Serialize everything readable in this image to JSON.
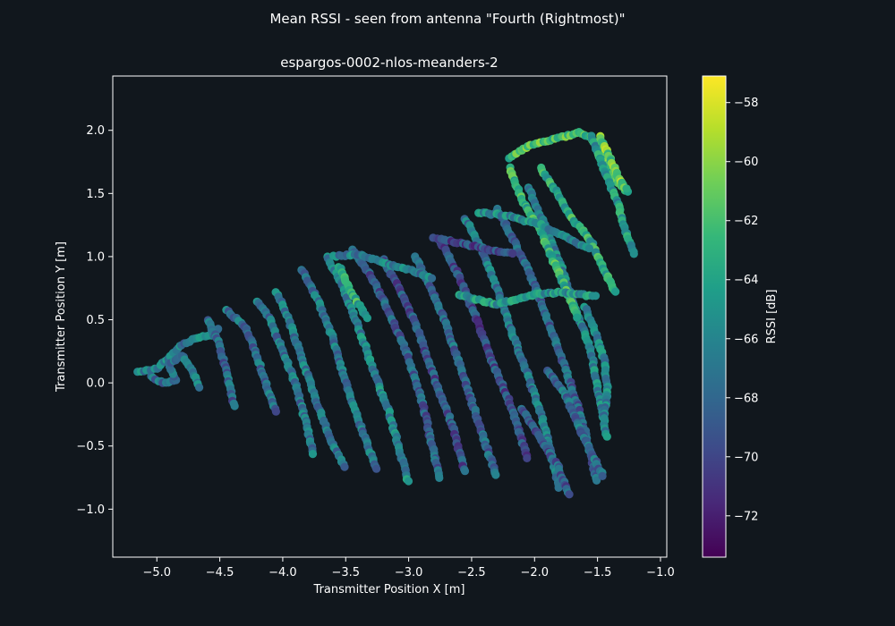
{
  "figure": {
    "suptitle": "Mean RSSI - seen from antenna \"Fourth (Rightmost)\"",
    "background": "#11171d"
  },
  "chart_data": {
    "type": "scatter",
    "title": "espargos-0002-nlos-meanders-2",
    "xlabel": "Transmitter Position X [m]",
    "ylabel": "Transmitter Position Y [m]",
    "xlim": [
      -5.35,
      -0.95
    ],
    "ylim": [
      -1.38,
      2.43
    ],
    "xticks": [
      -5.0,
      -4.5,
      -4.0,
      -3.5,
      -3.0,
      -2.5,
      -2.0,
      -1.5,
      -1.0
    ],
    "xtick_labels": [
      "−5.0",
      "−4.5",
      "−4.0",
      "−3.5",
      "−3.0",
      "−2.5",
      "−2.0",
      "−1.5",
      "−1.0"
    ],
    "yticks": [
      -1.0,
      -0.5,
      0.0,
      0.5,
      1.0,
      1.5,
      2.0
    ],
    "ytick_labels": [
      "−1.0",
      "−0.5",
      "0.0",
      "0.5",
      "1.0",
      "1.5",
      "2.0"
    ],
    "grid": false,
    "colormap": "viridis",
    "colorbar": {
      "label": "RSSI [dB]",
      "range": [
        -73.4,
        -57.1
      ],
      "ticks": [
        -58,
        -60,
        -62,
        -64,
        -66,
        -68,
        -70,
        -72
      ],
      "tick_labels": [
        "−58",
        "−60",
        "−62",
        "−64",
        "−66",
        "−68",
        "−70",
        "−72"
      ]
    },
    "colors": [
      "#440154",
      "#482878",
      "#3e4a89",
      "#31688e",
      "#26828e",
      "#1f9e89",
      "#35b779",
      "#6ece58",
      "#b5de2b",
      "#fde725"
    ],
    "trajectories": [
      {
        "rssi_mean": -66.5,
        "points": [
          [
            -5.15,
            0.09
          ],
          [
            -5.0,
            0.11
          ],
          [
            -4.8,
            0.3
          ],
          [
            -4.7,
            0.35
          ],
          [
            -4.55,
            0.38
          ],
          [
            -4.5,
            0.45
          ]
        ]
      },
      {
        "rssi_mean": -67.0,
        "points": [
          [
            -5.05,
            0.05
          ],
          [
            -4.95,
            0.0
          ],
          [
            -4.85,
            0.02
          ],
          [
            -4.9,
            0.15
          ],
          [
            -4.8,
            0.22
          ],
          [
            -4.72,
            0.1
          ],
          [
            -4.65,
            -0.05
          ]
        ]
      },
      {
        "rssi_mean": -68.0,
        "points": [
          [
            -4.6,
            0.5
          ],
          [
            -4.52,
            0.35
          ],
          [
            -4.45,
            0.1
          ],
          [
            -4.38,
            -0.2
          ]
        ]
      },
      {
        "rssi_mean": -67.5,
        "points": [
          [
            -4.45,
            0.58
          ],
          [
            -4.3,
            0.45
          ],
          [
            -4.2,
            0.2
          ],
          [
            -4.12,
            -0.05
          ],
          [
            -4.05,
            -0.25
          ]
        ]
      },
      {
        "rssi_mean": -67.0,
        "points": [
          [
            -4.2,
            0.65
          ],
          [
            -4.1,
            0.5
          ],
          [
            -4.0,
            0.25
          ],
          [
            -3.9,
            0.0
          ],
          [
            -3.82,
            -0.3
          ],
          [
            -3.75,
            -0.58
          ]
        ]
      },
      {
        "rssi_mean": -66.5,
        "points": [
          [
            -4.05,
            0.72
          ],
          [
            -3.95,
            0.5
          ],
          [
            -3.85,
            0.2
          ],
          [
            -3.75,
            -0.1
          ],
          [
            -3.62,
            -0.45
          ],
          [
            -3.5,
            -0.68
          ]
        ]
      },
      {
        "rssi_mean": -67.0,
        "points": [
          [
            -3.85,
            0.9
          ],
          [
            -3.72,
            0.65
          ],
          [
            -3.6,
            0.35
          ],
          [
            -3.5,
            0.0
          ],
          [
            -3.38,
            -0.35
          ],
          [
            -3.25,
            -0.7
          ]
        ]
      },
      {
        "rssi_mean": -66.0,
        "points": [
          [
            -3.65,
            1.0
          ],
          [
            -3.52,
            0.75
          ],
          [
            -3.4,
            0.45
          ],
          [
            -3.28,
            0.1
          ],
          [
            -3.15,
            -0.25
          ],
          [
            -3.0,
            -0.8
          ]
        ]
      },
      {
        "rssi_mean": -63.5,
        "points": [
          [
            -3.55,
            0.92
          ],
          [
            -3.45,
            0.7
          ],
          [
            -3.32,
            0.5
          ]
        ]
      },
      {
        "rssi_mean": -68.5,
        "points": [
          [
            -3.45,
            1.05
          ],
          [
            -3.3,
            0.85
          ],
          [
            -3.15,
            0.55
          ],
          [
            -3.0,
            0.2
          ],
          [
            -2.88,
            -0.2
          ],
          [
            -2.75,
            -0.78
          ]
        ]
      },
      {
        "rssi_mean": -69.0,
        "points": [
          [
            -3.2,
            0.98
          ],
          [
            -3.05,
            0.7
          ],
          [
            -2.92,
            0.4
          ],
          [
            -2.8,
            0.05
          ],
          [
            -2.65,
            -0.35
          ],
          [
            -2.55,
            -0.72
          ]
        ]
      },
      {
        "rssi_mean": -68.0,
        "points": [
          [
            -2.95,
            1.0
          ],
          [
            -2.82,
            0.75
          ],
          [
            -2.7,
            0.45
          ],
          [
            -2.58,
            0.1
          ],
          [
            -2.45,
            -0.3
          ],
          [
            -2.3,
            -0.75
          ]
        ]
      },
      {
        "rssi_mean": -69.5,
        "points": [
          [
            -2.75,
            1.12
          ],
          [
            -2.6,
            0.85
          ],
          [
            -2.48,
            0.55
          ],
          [
            -2.35,
            0.2
          ],
          [
            -2.2,
            -0.15
          ],
          [
            -2.05,
            -0.62
          ]
        ]
      },
      {
        "rssi_mean": -67.0,
        "points": [
          [
            -2.55,
            1.3
          ],
          [
            -2.42,
            1.05
          ],
          [
            -2.3,
            0.75
          ],
          [
            -2.18,
            0.4
          ],
          [
            -2.05,
            0.05
          ],
          [
            -1.92,
            -0.35
          ],
          [
            -1.8,
            -0.85
          ]
        ]
      },
      {
        "rssi_mean": -68.0,
        "points": [
          [
            -2.3,
            1.38
          ],
          [
            -2.15,
            1.1
          ],
          [
            -2.0,
            0.78
          ],
          [
            -1.88,
            0.45
          ],
          [
            -1.75,
            0.1
          ],
          [
            -1.62,
            -0.3
          ],
          [
            -1.5,
            -0.8
          ]
        ]
      },
      {
        "rssi_mean": -66.0,
        "points": [
          [
            -2.05,
            1.55
          ],
          [
            -1.92,
            1.25
          ],
          [
            -1.8,
            0.95
          ],
          [
            -1.68,
            0.6
          ],
          [
            -1.55,
            0.25
          ],
          [
            -1.48,
            -0.15
          ],
          [
            -1.42,
            -0.45
          ]
        ]
      },
      {
        "rssi_mean": -63.0,
        "points": [
          [
            -2.2,
            1.7
          ],
          [
            -2.1,
            1.45
          ],
          [
            -1.95,
            1.2
          ],
          [
            -1.8,
            0.85
          ],
          [
            -1.65,
            0.5
          ]
        ]
      },
      {
        "rssi_mean": -62.0,
        "points": [
          [
            -2.2,
            1.78
          ],
          [
            -2.05,
            1.88
          ],
          [
            -1.85,
            1.93
          ],
          [
            -1.65,
            1.98
          ],
          [
            -1.55,
            1.95
          ],
          [
            -1.45,
            1.78
          ],
          [
            -1.35,
            1.6
          ],
          [
            -1.25,
            1.5
          ]
        ]
      },
      {
        "rssi_mean": -63.5,
        "points": [
          [
            -1.95,
            1.7
          ],
          [
            -1.82,
            1.5
          ],
          [
            -1.7,
            1.3
          ],
          [
            -1.55,
            1.12
          ],
          [
            -1.45,
            0.9
          ],
          [
            -1.35,
            0.7
          ]
        ]
      },
      {
        "rssi_mean": -64.5,
        "points": [
          [
            -1.55,
            1.95
          ],
          [
            -1.45,
            1.7
          ],
          [
            -1.35,
            1.45
          ],
          [
            -1.28,
            1.22
          ],
          [
            -1.2,
            1.0
          ]
        ]
      },
      {
        "rssi_mean": -61.0,
        "points": [
          [
            -1.48,
            1.95
          ],
          [
            -1.4,
            1.78
          ],
          [
            -1.32,
            1.6
          ],
          [
            -1.26,
            1.52
          ]
        ]
      },
      {
        "rssi_mean": -65.5,
        "points": [
          [
            -2.45,
            1.35
          ],
          [
            -2.2,
            1.32
          ],
          [
            -1.95,
            1.25
          ],
          [
            -1.75,
            1.15
          ],
          [
            -1.55,
            1.05
          ]
        ]
      },
      {
        "rssi_mean": -69.5,
        "points": [
          [
            -2.8,
            1.15
          ],
          [
            -2.55,
            1.1
          ],
          [
            -2.35,
            1.05
          ],
          [
            -2.15,
            1.02
          ]
        ]
      },
      {
        "rssi_mean": -66.5,
        "points": [
          [
            -3.6,
            1.0
          ],
          [
            -3.4,
            1.02
          ],
          [
            -3.2,
            0.95
          ],
          [
            -3.0,
            0.9
          ],
          [
            -2.8,
            0.82
          ]
        ]
      },
      {
        "rssi_mean": -65.0,
        "points": [
          [
            -2.6,
            0.7
          ],
          [
            -2.3,
            0.62
          ],
          [
            -2.0,
            0.7
          ],
          [
            -1.75,
            0.72
          ],
          [
            -1.5,
            0.68
          ]
        ]
      },
      {
        "rssi_mean": -67.5,
        "points": [
          [
            -1.9,
            0.1
          ],
          [
            -1.75,
            -0.1
          ],
          [
            -1.65,
            -0.35
          ],
          [
            -1.55,
            -0.55
          ],
          [
            -1.45,
            -0.75
          ]
        ]
      },
      {
        "rssi_mean": -66.0,
        "points": [
          [
            -1.6,
            0.6
          ],
          [
            -1.52,
            0.4
          ],
          [
            -1.45,
            0.2
          ],
          [
            -1.42,
            -0.05
          ],
          [
            -1.45,
            -0.3
          ]
        ]
      },
      {
        "rssi_mean": -68.5,
        "points": [
          [
            -2.1,
            -0.2
          ],
          [
            -1.95,
            -0.45
          ],
          [
            -1.82,
            -0.65
          ],
          [
            -1.72,
            -0.9
          ]
        ]
      }
    ]
  }
}
